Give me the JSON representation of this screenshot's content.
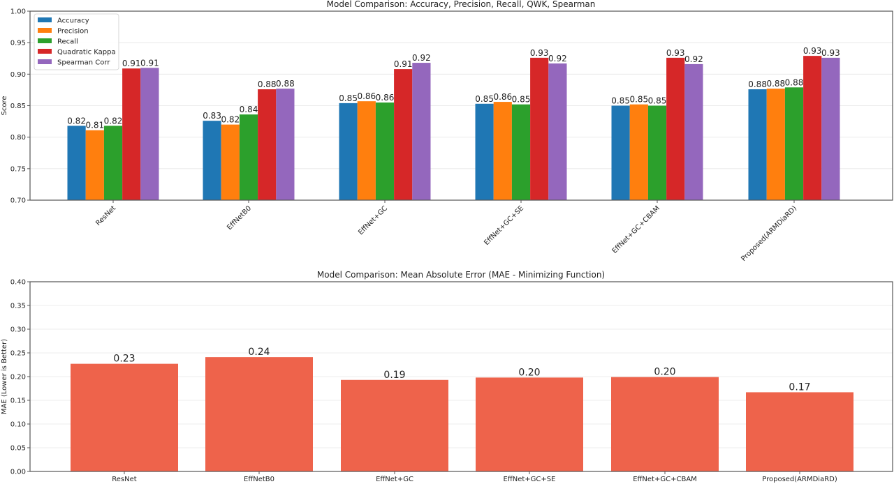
{
  "chart_data": [
    {
      "type": "bar",
      "title": "Model Comparison: Accuracy, Precision, Recall, QWK, Spearman",
      "xlabel": "",
      "ylabel": "Score",
      "ylim": [
        0.7,
        1.0
      ],
      "yticks": [
        "0.70",
        "0.75",
        "0.80",
        "0.85",
        "0.90",
        "0.95",
        "1.00"
      ],
      "grid": "y",
      "legend_position": "top-left",
      "categories": [
        "ResNet",
        "EffNetB0",
        "EffNet+GC",
        "EffNet+GC+SE",
        "EffNet+GC+CBAM",
        "Proposed(ARMDiaRD)"
      ],
      "series": [
        {
          "name": "Accuracy",
          "color": "#1f77b4",
          "values": [
            0.818,
            0.826,
            0.854,
            0.853,
            0.85,
            0.876
          ]
        },
        {
          "name": "Precision",
          "color": "#ff7f0e",
          "values": [
            0.811,
            0.82,
            0.857,
            0.856,
            0.852,
            0.877
          ]
        },
        {
          "name": "Recall",
          "color": "#2ca02c",
          "values": [
            0.818,
            0.836,
            0.855,
            0.852,
            0.85,
            0.879
          ]
        },
        {
          "name": "Quadratic Kappa",
          "color": "#d62728",
          "values": [
            0.909,
            0.876,
            0.908,
            0.926,
            0.926,
            0.929
          ]
        },
        {
          "name": "Spearman Corr",
          "color": "#9467bd",
          "values": [
            0.91,
            0.877,
            0.918,
            0.917,
            0.916,
            0.926
          ]
        }
      ],
      "data_labels": [
        [
          "0.82",
          "0.83",
          "0.85",
          "0.85",
          "0.85",
          "0.88"
        ],
        [
          "0.81",
          "0.82",
          "0.86",
          "0.86",
          "0.85",
          "0.88"
        ],
        [
          "0.82",
          "0.84",
          "0.86",
          "0.85",
          "0.85",
          "0.88"
        ],
        [
          "0.91",
          "0.88",
          "0.91",
          "0.93",
          "0.93",
          "0.93"
        ],
        [
          "0.91",
          "0.88",
          "0.92",
          "0.92",
          "0.92",
          "0.93"
        ]
      ],
      "xtick_rotation_deg": 45
    },
    {
      "type": "bar",
      "title": "Model Comparison: Mean Absolute Error (MAE - Minimizing Function)",
      "xlabel": "",
      "ylabel": "MAE (Lower is Better)",
      "ylim": [
        0.0,
        0.4
      ],
      "yticks": [
        "0.00",
        "0.05",
        "0.10",
        "0.15",
        "0.20",
        "0.25",
        "0.30",
        "0.35",
        "0.40"
      ],
      "grid": "y",
      "categories": [
        "ResNet",
        "EffNetB0",
        "EffNet+GC",
        "EffNet+GC+SE",
        "EffNet+GC+CBAM",
        "Proposed(ARMDiaRD)"
      ],
      "series": [
        {
          "name": "MAE",
          "color": "#ee634b",
          "values": [
            0.227,
            0.241,
            0.193,
            0.198,
            0.199,
            0.167
          ]
        }
      ],
      "data_labels": [
        [
          "0.23",
          "0.24",
          "0.19",
          "0.20",
          "0.20",
          "0.17"
        ]
      ]
    }
  ]
}
